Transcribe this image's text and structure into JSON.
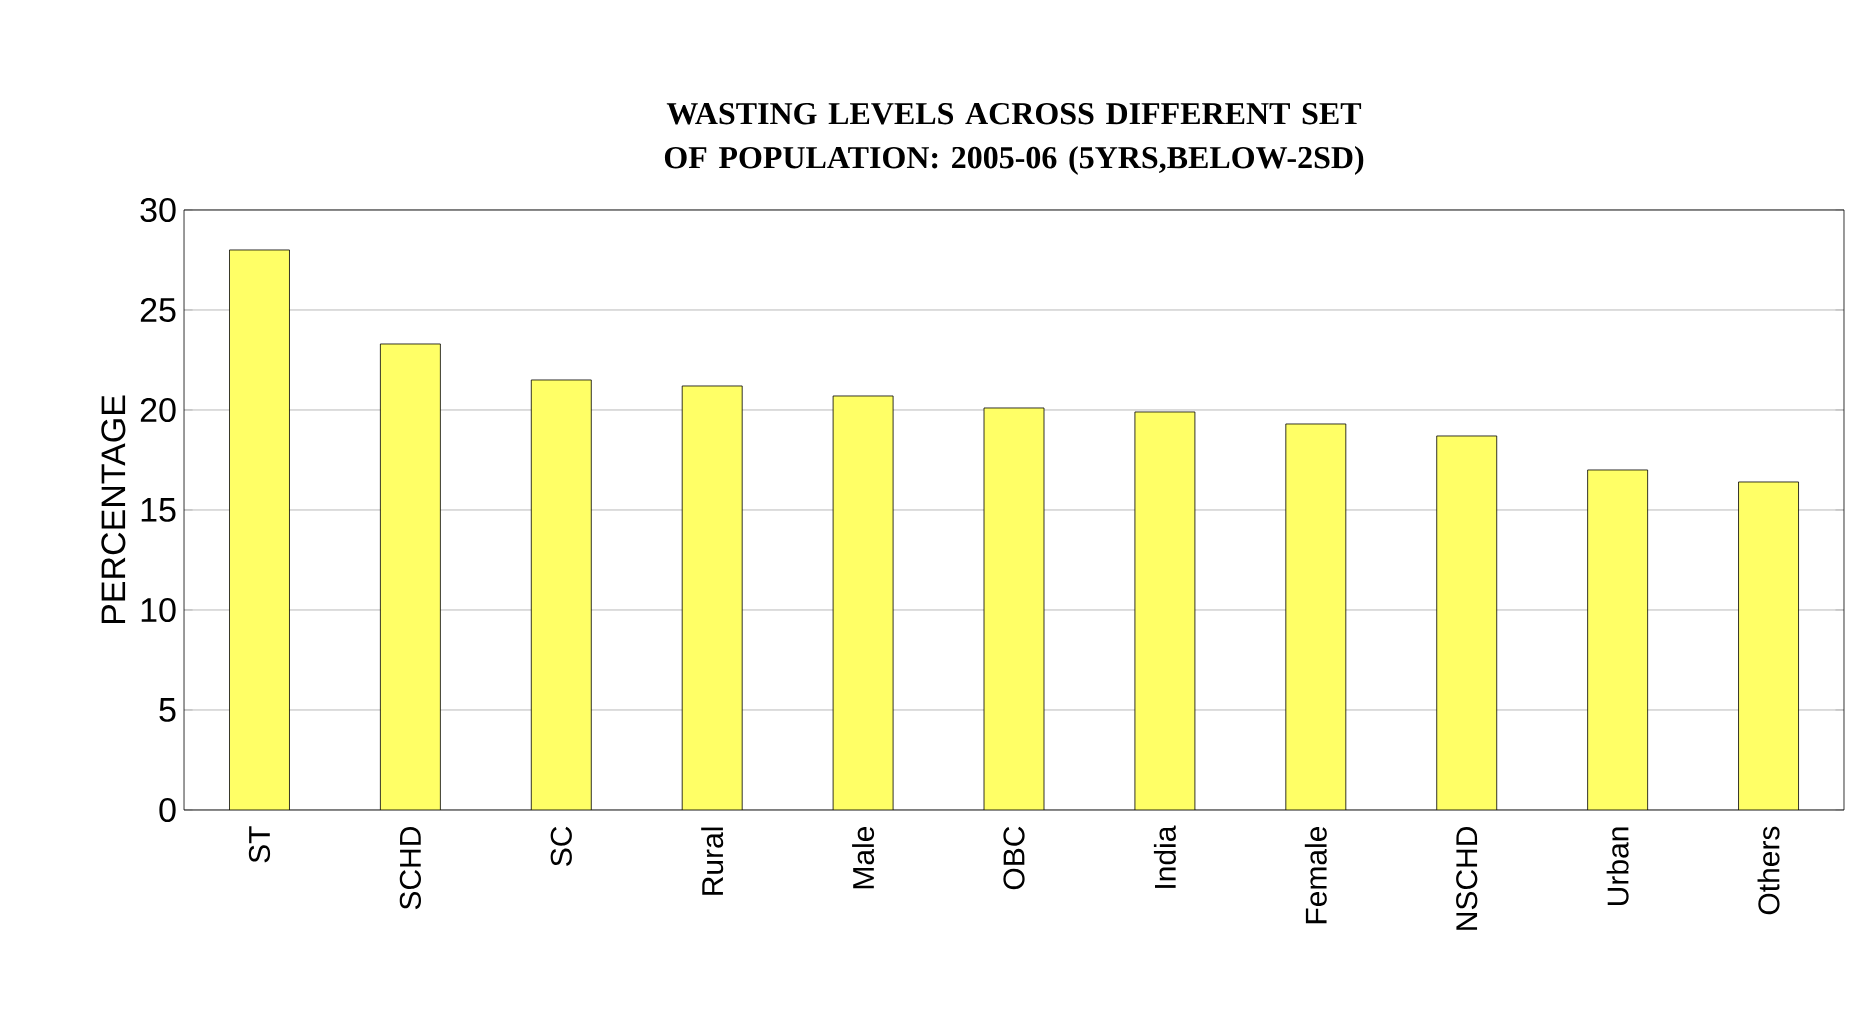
{
  "chart_data": {
    "type": "bar",
    "title": "WASTING LEVELS ACROSS DIFFERENT SET OF POPULATION: 2005-06 (5YRS,BELOW-2SD)",
    "ylabel": "PERCENTAGE",
    "categories": [
      "ST",
      "SCHD",
      "SC",
      "Rural",
      "Male",
      "OBC",
      "India",
      "Female",
      "NSCHD",
      "Urban",
      "Others"
    ],
    "values": [
      28,
      23.3,
      21.5,
      21.2,
      20.7,
      20.1,
      19.9,
      19.3,
      18.7,
      17,
      16.4
    ],
    "color": "#ffff66",
    "ylim": [
      0,
      30
    ],
    "yticks": [
      0,
      5,
      10,
      15,
      20,
      25,
      30
    ],
    "grid": "y"
  }
}
